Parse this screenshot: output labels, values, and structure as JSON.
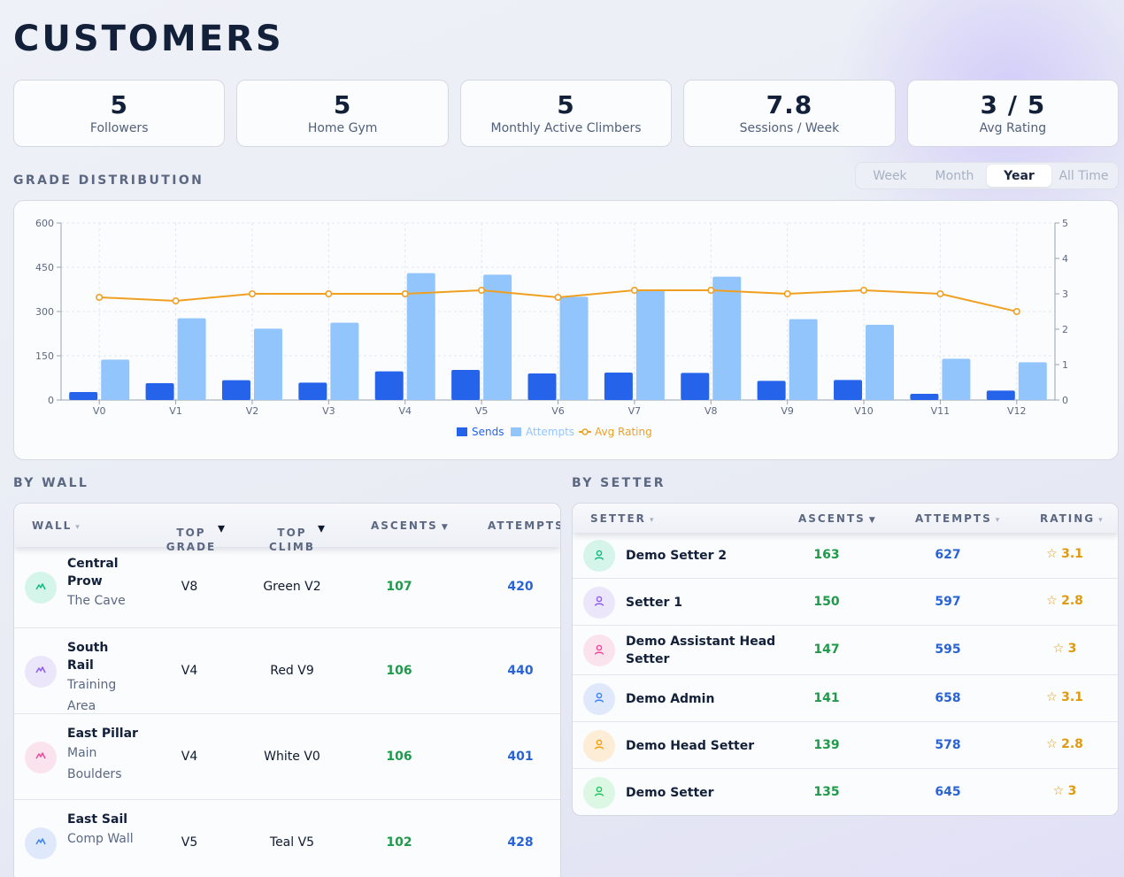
{
  "title": "CUSTOMERS",
  "kpis": [
    {
      "value": "5",
      "label": "Followers"
    },
    {
      "value": "5",
      "label": "Home Gym"
    },
    {
      "value": "5",
      "label": "Monthly Active Climbers"
    },
    {
      "value": "7.8",
      "label": "Sessions / Week"
    },
    {
      "value": "3 / 5",
      "label": "Avg Rating"
    }
  ],
  "grade_section": {
    "label": "GRADE DISTRIBUTION",
    "ranges": [
      "Week",
      "Month",
      "Year",
      "All Time"
    ],
    "active_range": "Year"
  },
  "chart_data": {
    "type": "bar",
    "categories": [
      "V0",
      "V1",
      "V2",
      "V3",
      "V4",
      "V5",
      "V6",
      "V7",
      "V8",
      "V9",
      "V10",
      "V11",
      "V12"
    ],
    "series": [
      {
        "name": "Sends",
        "type": "bar",
        "axis": "left",
        "color": "#2563eb",
        "values": [
          27,
          57,
          67,
          59,
          97,
          102,
          90,
          93,
          92,
          65,
          68,
          21,
          32
        ]
      },
      {
        "name": "Attempts",
        "type": "bar",
        "axis": "left",
        "color": "#93c5fd",
        "values": [
          137,
          277,
          242,
          262,
          430,
          425,
          350,
          375,
          418,
          274,
          255,
          140,
          128
        ]
      },
      {
        "name": "Avg Rating",
        "type": "line",
        "axis": "right",
        "color": "#f0a020",
        "values": [
          2.9,
          2.8,
          3.0,
          3.0,
          3.0,
          3.1,
          2.9,
          3.1,
          3.1,
          3.0,
          3.1,
          3.0,
          2.5
        ]
      }
    ],
    "yticks_left": [
      "0",
      "150",
      "300",
      "450",
      "600"
    ],
    "yticks_right": [
      "0",
      "1",
      "2",
      "3",
      "4",
      "5"
    ],
    "ylim": [
      0,
      600
    ],
    "ylim_right": [
      0,
      5
    ],
    "grid": true,
    "legend_position": "bottom"
  },
  "by_wall": {
    "label": "BY WALL",
    "columns": [
      "WALL",
      "TOP\nGRADE",
      "TOP\nCLIMB",
      "ASCENTS",
      "ATTEMPTS"
    ],
    "rows": [
      {
        "name": "Central Prow",
        "area": "The Cave",
        "top_grade": "V8",
        "top_climb": "Green V2",
        "ascents": "107",
        "attempts": "420",
        "avatar_color": "#d5f5ea",
        "icon_color": "#10b981",
        "icon": "mountain-icon"
      },
      {
        "name": "South Rail",
        "area": "Training Area",
        "top_grade": "V4",
        "top_climb": "Red V9",
        "ascents": "106",
        "attempts": "440",
        "avatar_color": "#ece6fb",
        "icon_color": "#8b5cf6",
        "icon": "mountain-icon"
      },
      {
        "name": "East Pillar",
        "area": "Main Boulders",
        "top_grade": "V4",
        "top_climb": "White V0",
        "ascents": "106",
        "attempts": "401",
        "avatar_color": "#fbe3ee",
        "icon_color": "#ec4899",
        "icon": "mountain-icon"
      },
      {
        "name": "East Sail",
        "area": "Comp Wall",
        "top_grade": "V5",
        "top_climb": "Teal V5",
        "ascents": "102",
        "attempts": "428",
        "avatar_color": "#dfe9fb",
        "icon_color": "#3b82f6",
        "icon": "mountain-icon"
      }
    ]
  },
  "by_setter": {
    "label": "BY SETTER",
    "columns": [
      "SETTER",
      "ASCENTS",
      "ATTEMPTS",
      "RATING"
    ],
    "rows": [
      {
        "name": "Demo Setter 2",
        "ascents": "163",
        "attempts": "627",
        "rating": "3.1",
        "avatar_color": "#d5f5ea",
        "icon_color": "#10b981",
        "icon": "person-icon"
      },
      {
        "name": "Setter 1",
        "ascents": "150",
        "attempts": "597",
        "rating": "2.8",
        "avatar_color": "#ece6fb",
        "icon_color": "#8b5cf6",
        "icon": "person-icon"
      },
      {
        "name": "Demo Assistant Head Setter",
        "ascents": "147",
        "attempts": "595",
        "rating": "3",
        "avatar_color": "#fbe3ee",
        "icon_color": "#ec4899",
        "icon": "person-icon"
      },
      {
        "name": "Demo Admin",
        "ascents": "141",
        "attempts": "658",
        "rating": "3.1",
        "avatar_color": "#dfe9fb",
        "icon_color": "#3b82f6",
        "icon": "person-icon"
      },
      {
        "name": "Demo Head Setter",
        "ascents": "139",
        "attempts": "578",
        "rating": "2.8",
        "avatar_color": "#fdecd6",
        "icon_color": "#f59e0b",
        "icon": "person-icon"
      },
      {
        "name": "Demo Setter",
        "ascents": "135",
        "attempts": "645",
        "rating": "3",
        "avatar_color": "#dcf7e4",
        "icon_color": "#22c55e",
        "icon": "person-icon"
      }
    ]
  }
}
